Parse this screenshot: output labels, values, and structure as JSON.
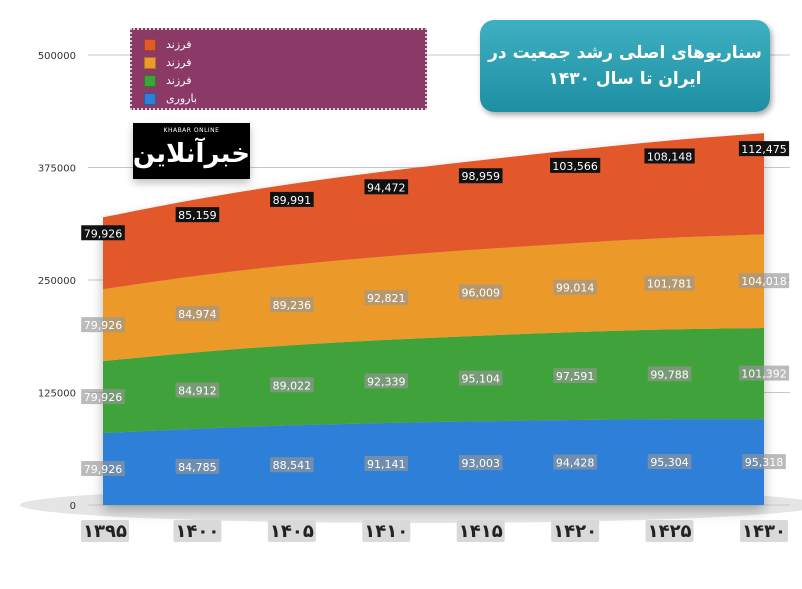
{
  "title": {
    "line1": "سناریوهای اصلی رشد جمعیت در",
    "line2": "ایران تا سال ۱۴۳۰"
  },
  "logo": {
    "small_text": "KHABAR ONLINE",
    "main_text": "خبرآنلاین"
  },
  "chart_data": {
    "type": "area",
    "stacked": true,
    "categories": [
      "۱۳۹۵",
      "۱۴۰۰",
      "۱۴۰۵",
      "۱۴۱۰",
      "۱۴۱۵",
      "۱۴۲۰",
      "۱۴۲۵",
      "۱۴۳۰"
    ],
    "y_ticks": [
      "500000",
      "375000",
      "250000",
      "125000",
      "0"
    ],
    "ylim": [
      0,
      500000
    ],
    "grid": true,
    "legend_position": "top-left",
    "series": [
      {
        "name": "باروری",
        "color": "#2f7fd8",
        "values": [
          79926,
          84785,
          88541,
          91141,
          93003,
          94428,
          95304,
          95318
        ],
        "labels": [
          "79,926",
          "84,785",
          "88,541",
          "91,141",
          "93,003",
          "94,428",
          "95,304",
          "95,318"
        ]
      },
      {
        "name": "فرزند",
        "color": "#3fa23a",
        "values": [
          79926,
          84912,
          89022,
          92339,
          95104,
          97591,
          99788,
          101392
        ],
        "labels": [
          "79,926",
          "84,912",
          "89,022",
          "92,339",
          "95,104",
          "97,591",
          "99,788",
          "101,392"
        ]
      },
      {
        "name": "فرزند",
        "color": "#eb9a2c",
        "values": [
          79926,
          84974,
          89236,
          92821,
          96009,
          99014,
          101781,
          104018
        ],
        "labels": [
          "79,926",
          "84,974",
          "89,236",
          "92,821",
          "96,009",
          "99,014",
          "101,781",
          "104,018"
        ]
      },
      {
        "name": "فرزند",
        "color": "#e2592a",
        "values": [
          79926,
          85159,
          89991,
          94472,
          98959,
          103566,
          108148,
          112475
        ],
        "labels": [
          "79,926",
          "85,159",
          "89,991",
          "94,472",
          "98,959",
          "103,566",
          "108,148",
          "112,475"
        ]
      }
    ]
  }
}
